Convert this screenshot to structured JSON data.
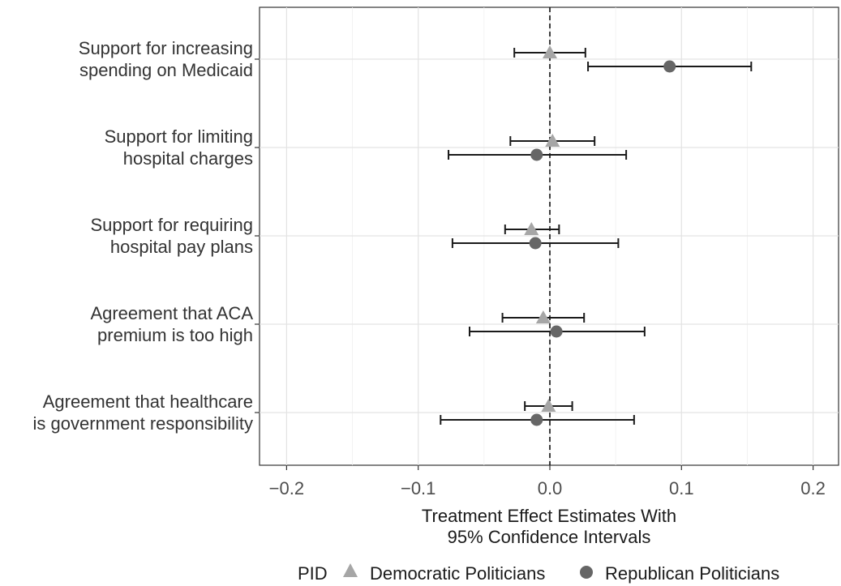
{
  "chart_data": {
    "type": "scatter",
    "subtype": "coefficient-plot-with-error-bars",
    "orientation": "horizontal",
    "title": "",
    "xlabel": [
      "Treatment Effect Estimates With",
      "95% Confidence Intervals"
    ],
    "ylabel": "",
    "xlim": [
      -0.22,
      0.22
    ],
    "xticks": [
      -0.2,
      -0.1,
      0.0,
      0.1,
      0.2
    ],
    "xtick_labels": [
      "−0.2",
      "−0.1",
      "0.0",
      "0.1",
      "0.2"
    ],
    "reference_line": {
      "x": 0,
      "style": "dashed"
    },
    "grid": true,
    "categories": [
      [
        "Support for increasing",
        "spending on Medicaid"
      ],
      [
        "Support for limiting",
        "hospital charges"
      ],
      [
        "Support for requiring",
        "hospital pay plans"
      ],
      [
        "Agreement that ACA",
        "premium is too high"
      ],
      [
        "Agreement that healthcare",
        "is government responsibility"
      ]
    ],
    "legend": {
      "title": "PID",
      "position": "bottom"
    },
    "series": [
      {
        "name": "Democratic Politicians",
        "marker": "triangle",
        "color": "#a6a6a6",
        "estimates": [
          0.0,
          0.002,
          -0.014,
          -0.005,
          -0.001
        ],
        "ci_low": [
          -0.027,
          -0.03,
          -0.034,
          -0.036,
          -0.019
        ],
        "ci_high": [
          0.027,
          0.034,
          0.007,
          0.026,
          0.017
        ]
      },
      {
        "name": "Republican Politicians",
        "marker": "circle",
        "color": "#666666",
        "estimates": [
          0.091,
          -0.01,
          -0.011,
          0.005,
          -0.01
        ],
        "ci_low": [
          0.029,
          -0.077,
          -0.074,
          -0.061,
          -0.083
        ],
        "ci_high": [
          0.153,
          0.058,
          0.052,
          0.072,
          0.064
        ]
      }
    ]
  }
}
